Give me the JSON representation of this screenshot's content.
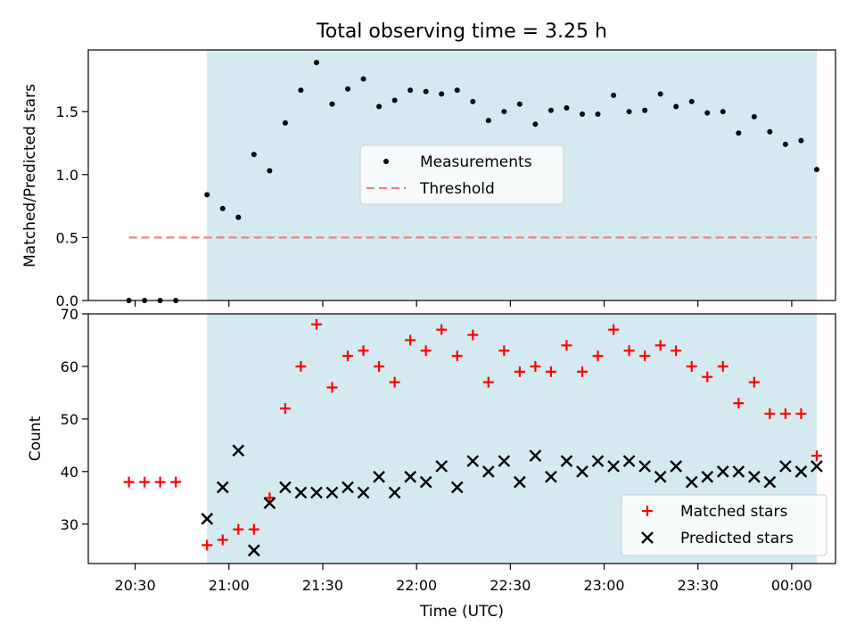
{
  "figure": {
    "title": "Total observing time = 3.25 h"
  },
  "chart_data": [
    {
      "type": "scatter",
      "ylabel": "Matched/Predicted stars",
      "xlim": [
        20.25,
        24.2333
      ],
      "ylim": [
        0,
        1.99
      ],
      "yticks": [
        0.0,
        0.5,
        1.0,
        1.5
      ],
      "ytick_labels": [
        "0.0",
        "0.5",
        "1.0",
        "1.5"
      ],
      "shaded_span": {
        "from": 20.8833,
        "to": 24.1333,
        "color": "#d4eaf0"
      },
      "legend": {
        "placement": "center",
        "entries": [
          "Measurements",
          "Threshold"
        ]
      },
      "series": [
        {
          "name": "Measurements",
          "kind": "points",
          "color": "#000000",
          "x": [
            20.4667,
            20.55,
            20.6333,
            20.7167,
            20.8833,
            20.9667,
            21.05,
            21.1333,
            21.2167,
            21.3,
            21.3833,
            21.4667,
            21.55,
            21.6333,
            21.7167,
            21.8,
            21.8833,
            21.9667,
            22.05,
            22.1333,
            22.2167,
            22.3,
            22.3833,
            22.4667,
            22.55,
            22.6333,
            22.7167,
            22.8,
            22.8833,
            22.9667,
            23.05,
            23.1333,
            23.2167,
            23.3,
            23.3833,
            23.4667,
            23.55,
            23.6333,
            23.7167,
            23.8,
            23.8833,
            23.9667,
            24.05,
            24.1333
          ],
          "y": [
            0.0,
            0.0,
            0.0,
            0.0,
            0.84,
            0.73,
            0.66,
            1.16,
            1.03,
            1.41,
            1.67,
            1.89,
            1.56,
            1.68,
            1.76,
            1.54,
            1.59,
            1.67,
            1.66,
            1.64,
            1.67,
            1.58,
            1.43,
            1.5,
            1.56,
            1.4,
            1.51,
            1.53,
            1.48,
            1.48,
            1.63,
            1.5,
            1.51,
            1.64,
            1.54,
            1.58,
            1.49,
            1.5,
            1.33,
            1.46,
            1.34,
            1.24,
            1.27,
            1.04
          ]
        },
        {
          "name": "Threshold",
          "kind": "dashed-line",
          "color": "#f08080",
          "x": [
            20.4667,
            24.1333
          ],
          "y": [
            0.5,
            0.5
          ]
        }
      ]
    },
    {
      "type": "scatter",
      "xlabel": "Time (UTC)",
      "ylabel": "Count",
      "xlim": [
        20.25,
        24.2333
      ],
      "ylim": [
        22.5,
        70
      ],
      "yticks": [
        30,
        40,
        50,
        60,
        70
      ],
      "ytick_labels": [
        "30",
        "40",
        "50",
        "60",
        "70"
      ],
      "xticks": [
        20.5,
        21.0,
        21.5,
        22.0,
        22.5,
        23.0,
        23.5,
        24.0
      ],
      "xtick_labels": [
        "20:30",
        "21:00",
        "21:30",
        "22:00",
        "22:30",
        "23:00",
        "23:30",
        "00:00"
      ],
      "shaded_span": {
        "from": 20.8833,
        "to": 24.1333,
        "color": "#d4eaf0"
      },
      "legend": {
        "placement": "lower right",
        "entries": [
          "Matched stars",
          "Predicted stars"
        ]
      },
      "series": [
        {
          "name": "Matched stars",
          "marker": "plus",
          "color": "#ff0000",
          "x": [
            20.4667,
            20.55,
            20.6333,
            20.7167,
            20.8833,
            20.9667,
            21.05,
            21.1333,
            21.2167,
            21.3,
            21.3833,
            21.4667,
            21.55,
            21.6333,
            21.7167,
            21.8,
            21.8833,
            21.9667,
            22.05,
            22.1333,
            22.2167,
            22.3,
            22.3833,
            22.4667,
            22.55,
            22.6333,
            22.7167,
            22.8,
            22.8833,
            22.9667,
            23.05,
            23.1333,
            23.2167,
            23.3,
            23.3833,
            23.4667,
            23.55,
            23.6333,
            23.7167,
            23.8,
            23.8833,
            23.9667,
            24.05,
            24.1333
          ],
          "y": [
            38,
            38,
            38,
            38,
            26,
            27,
            29,
            29,
            35,
            52,
            60,
            68,
            56,
            62,
            63,
            60,
            57,
            65,
            63,
            67,
            62,
            66,
            57,
            63,
            59,
            60,
            59,
            64,
            59,
            62,
            67,
            63,
            62,
            64,
            63,
            60,
            58,
            60,
            53,
            57,
            51,
            51,
            51,
            43
          ]
        },
        {
          "name": "Predicted stars",
          "marker": "x",
          "color": "#000000",
          "x": [
            20.8833,
            20.9667,
            21.05,
            21.1333,
            21.2167,
            21.3,
            21.3833,
            21.4667,
            21.55,
            21.6333,
            21.7167,
            21.8,
            21.8833,
            21.9667,
            22.05,
            22.1333,
            22.2167,
            22.3,
            22.3833,
            22.4667,
            22.55,
            22.6333,
            22.7167,
            22.8,
            22.8833,
            22.9667,
            23.05,
            23.1333,
            23.2167,
            23.3,
            23.3833,
            23.4667,
            23.55,
            23.6333,
            23.7167,
            23.8,
            23.8833,
            23.9667,
            24.05,
            24.1333
          ],
          "y": [
            31,
            37,
            44,
            25,
            34,
            37,
            36,
            36,
            36,
            37,
            36,
            39,
            36,
            39,
            38,
            41,
            37,
            42,
            40,
            42,
            38,
            43,
            39,
            42,
            40,
            42,
            41,
            42,
            41,
            39,
            41,
            38,
            39,
            40,
            40,
            39,
            38,
            41,
            40,
            41
          ]
        }
      ]
    }
  ]
}
